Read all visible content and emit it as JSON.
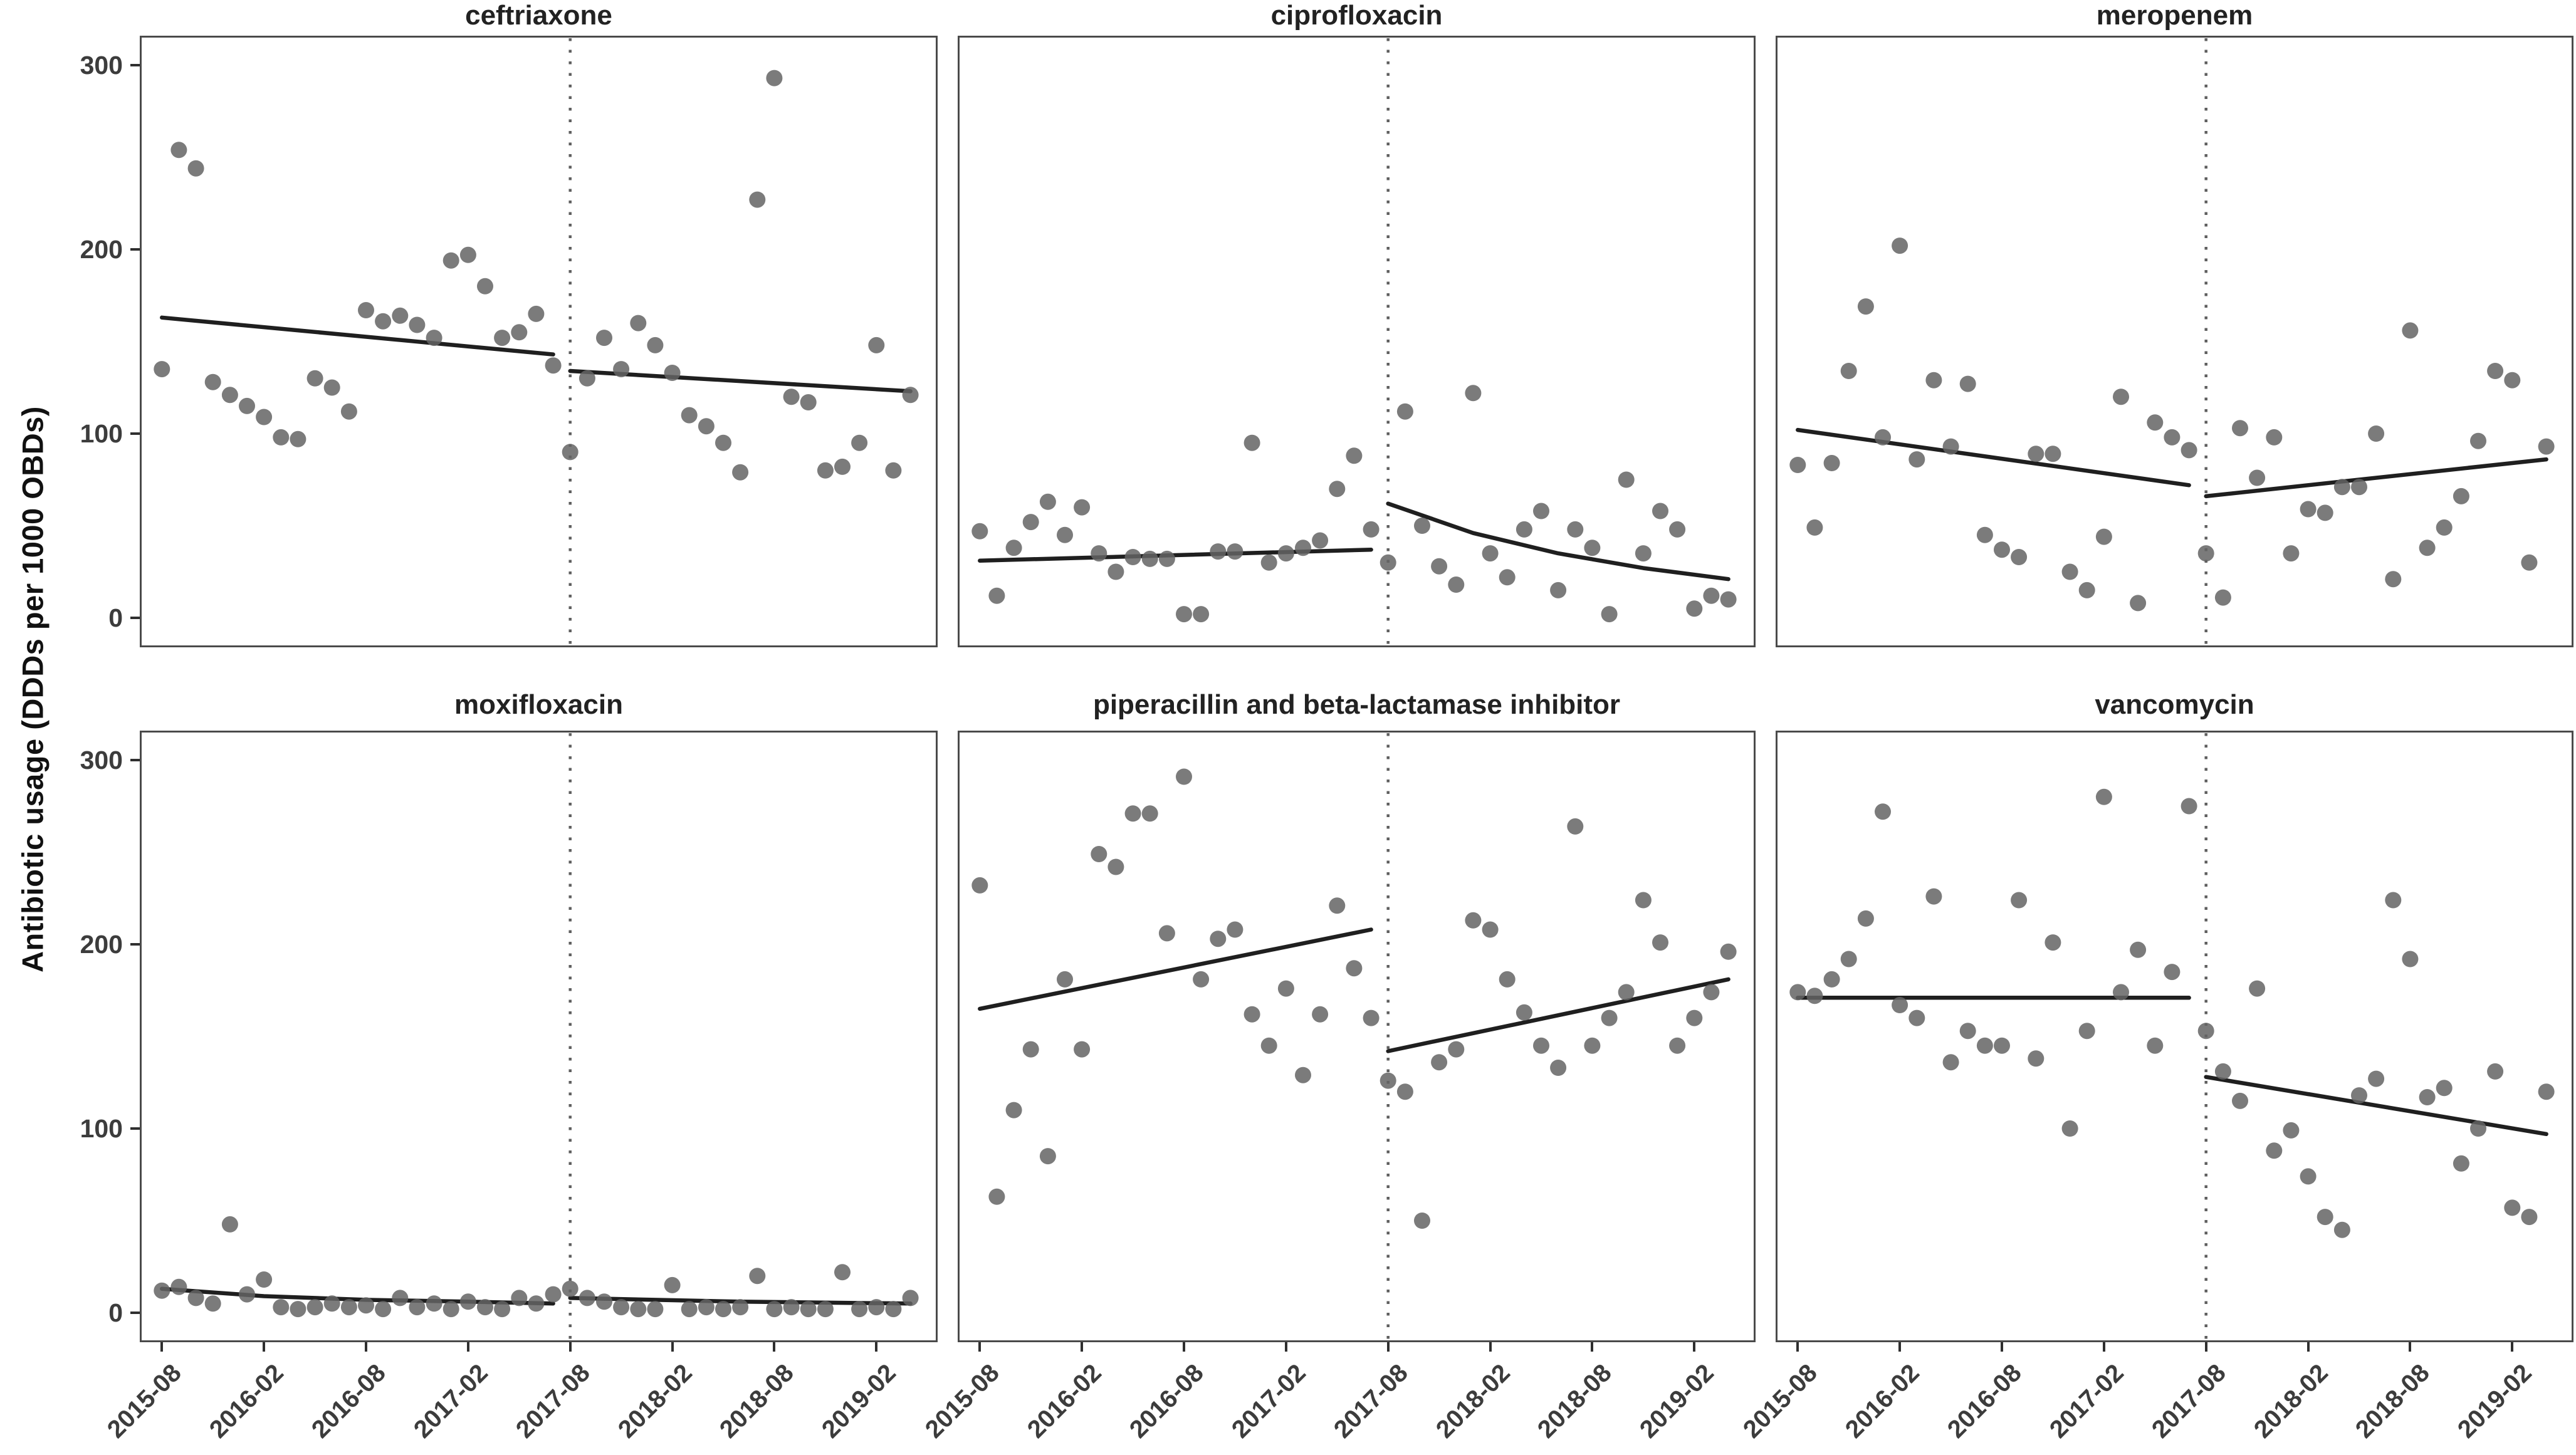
{
  "chart_data": {
    "type": "scatter",
    "title": "",
    "xlabel": "",
    "ylabel": "Antibiotic usage (DDDs per 1000 OBDs)",
    "ylim": [
      0,
      300
    ],
    "y_ticks": [
      0,
      100,
      200,
      300
    ],
    "x_tick_labels": [
      "2015-08",
      "2016-02",
      "2016-08",
      "2017-02",
      "2017-08",
      "2018-02",
      "2018-08",
      "2019-02"
    ],
    "x_tick_months": [
      0,
      6,
      12,
      18,
      24,
      30,
      36,
      42
    ],
    "grid": "off",
    "legend": "none",
    "interruption_month": 24,
    "interruption_label": "2017-08",
    "months": [
      "2015-08",
      "2015-09",
      "2015-10",
      "2015-11",
      "2015-12",
      "2016-01",
      "2016-02",
      "2016-03",
      "2016-04",
      "2016-05",
      "2016-06",
      "2016-07",
      "2016-08",
      "2016-09",
      "2016-10",
      "2016-11",
      "2016-12",
      "2017-01",
      "2017-02",
      "2017-03",
      "2017-04",
      "2017-05",
      "2017-06",
      "2017-07",
      "2017-08",
      "2017-09",
      "2017-10",
      "2017-11",
      "2017-12",
      "2018-01",
      "2018-02",
      "2018-03",
      "2018-04",
      "2018-05",
      "2018-06",
      "2018-07",
      "2018-08",
      "2018-09",
      "2018-10",
      "2018-11",
      "2018-12",
      "2019-01",
      "2019-02",
      "2019-03",
      "2019-04"
    ],
    "facets": [
      {
        "label": "ceftriaxone",
        "values": [
          135,
          254,
          244,
          128,
          121,
          115,
          109,
          98,
          97,
          130,
          125,
          112,
          167,
          161,
          164,
          159,
          152,
          194,
          197,
          180,
          152,
          155,
          165,
          137,
          90,
          130,
          152,
          135,
          160,
          148,
          133,
          110,
          104,
          95,
          79,
          227,
          293,
          120,
          117,
          80,
          82,
          95,
          148,
          80,
          121
        ],
        "trend_pre": [
          [
            0,
            163
          ],
          [
            23,
            143
          ]
        ],
        "trend_post": [
          [
            24,
            134
          ],
          [
            44,
            123
          ]
        ]
      },
      {
        "label": "ciprofloxacin",
        "values": [
          47,
          12,
          38,
          52,
          63,
          45,
          60,
          35,
          25,
          33,
          32,
          32,
          2,
          2,
          36,
          36,
          95,
          30,
          35,
          38,
          42,
          70,
          88,
          48,
          30,
          112,
          50,
          28,
          18,
          122,
          35,
          22,
          48,
          58,
          15,
          48,
          38,
          2,
          75,
          35,
          58,
          48,
          5,
          12,
          10
        ],
        "trend_pre": [
          [
            0,
            31
          ],
          [
            23,
            37
          ]
        ],
        "trend_post": [
          [
            24,
            62
          ],
          [
            29,
            46
          ],
          [
            34,
            35
          ],
          [
            39,
            27
          ],
          [
            44,
            21
          ]
        ]
      },
      {
        "label": "meropenem",
        "values": [
          83,
          49,
          84,
          134,
          169,
          98,
          202,
          86,
          129,
          93,
          127,
          45,
          37,
          33,
          89,
          89,
          25,
          15,
          44,
          120,
          8,
          106,
          98,
          91,
          35,
          11,
          103,
          76,
          98,
          35,
          59,
          57,
          71,
          71,
          100,
          21,
          156,
          38,
          49,
          66,
          96,
          134,
          129,
          30,
          93
        ],
        "trend_pre": [
          [
            0,
            102
          ],
          [
            23,
            72
          ]
        ],
        "trend_post": [
          [
            24,
            66
          ],
          [
            44,
            86
          ]
        ]
      },
      {
        "label": "moxifloxacin",
        "values": [
          12,
          14,
          8,
          5,
          48,
          10,
          18,
          3,
          2,
          3,
          5,
          3,
          4,
          2,
          8,
          3,
          5,
          2,
          6,
          3,
          2,
          8,
          5,
          10,
          13,
          8,
          6,
          3,
          2,
          2,
          15,
          2,
          3,
          2,
          3,
          20,
          2,
          3,
          2,
          2,
          22,
          2,
          3,
          2,
          8
        ],
        "trend_pre": [
          [
            0,
            13
          ],
          [
            6,
            9
          ],
          [
            12,
            7
          ],
          [
            18,
            6
          ],
          [
            23,
            5
          ]
        ],
        "trend_post": [
          [
            24,
            8
          ],
          [
            34,
            6
          ],
          [
            44,
            5
          ]
        ]
      },
      {
        "label": "piperacillin and beta-lactamase inhibitor",
        "values": [
          232,
          63,
          110,
          143,
          85,
          181,
          143,
          249,
          242,
          271,
          271,
          206,
          291,
          181,
          203,
          208,
          162,
          145,
          176,
          129,
          162,
          221,
          187,
          160,
          126,
          120,
          50,
          136,
          143,
          213,
          208,
          181,
          163,
          145,
          133,
          264,
          145,
          160,
          174,
          224,
          201,
          145,
          160,
          174,
          196
        ],
        "trend_pre": [
          [
            0,
            165
          ],
          [
            23,
            208
          ]
        ],
        "trend_post": [
          [
            24,
            142
          ],
          [
            44,
            181
          ]
        ]
      },
      {
        "label": "vancomycin",
        "values": [
          174,
          172,
          181,
          192,
          214,
          272,
          167,
          160,
          226,
          136,
          153,
          145,
          145,
          224,
          138,
          201,
          100,
          153,
          280,
          174,
          197,
          145,
          185,
          275,
          153,
          131,
          115,
          176,
          88,
          99,
          74,
          52,
          45,
          118,
          127,
          224,
          192,
          117,
          122,
          81,
          100,
          131,
          57,
          52,
          120
        ],
        "trend_pre": [
          [
            0,
            171
          ],
          [
            23,
            171
          ]
        ],
        "trend_post": [
          [
            24,
            128
          ],
          [
            44,
            97
          ]
        ]
      }
    ],
    "style": {
      "point_color": "#646464",
      "point_opacity": 0.85,
      "trend_color": "#1f1f1f",
      "vline_color": "#5f5f5f",
      "border_color": "#4a4a4a",
      "tick_color": "#2f2f2f",
      "background": "#ffffff"
    }
  }
}
